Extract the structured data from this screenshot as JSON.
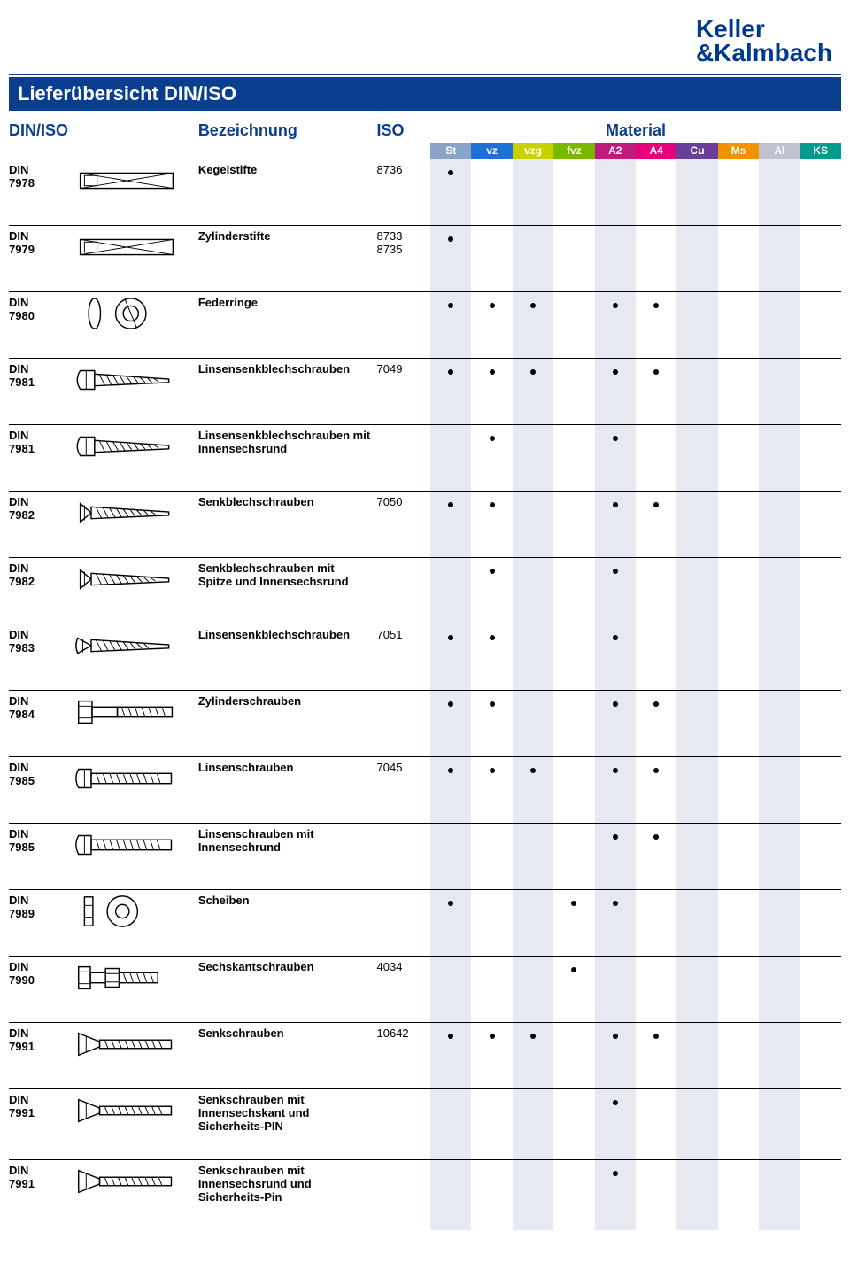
{
  "brand": {
    "line1": "Keller",
    "line2": "&Kalmbach"
  },
  "page_title": "Lieferübersicht DIN/ISO",
  "columns": {
    "din_iso": "DIN/ISO",
    "bezeichnung": "Bezeichnung",
    "iso": "ISO",
    "material": "Material"
  },
  "materials": [
    {
      "key": "St",
      "label": "St",
      "color": "#8aa3c8",
      "shaded": true
    },
    {
      "key": "vz",
      "label": "vz",
      "color": "#1e6fd6",
      "shaded": false
    },
    {
      "key": "vzg",
      "label": "vzg",
      "color": "#c9d200",
      "shaded": true
    },
    {
      "key": "fvz",
      "label": "fvz",
      "color": "#7ab800",
      "shaded": false
    },
    {
      "key": "A2",
      "label": "A2",
      "color": "#c01a7d",
      "shaded": true
    },
    {
      "key": "A4",
      "label": "A4",
      "color": "#e5007d",
      "shaded": false
    },
    {
      "key": "Cu",
      "label": "Cu",
      "color": "#6a3f99",
      "shaded": true
    },
    {
      "key": "Ms",
      "label": "Ms",
      "color": "#f39200",
      "shaded": false
    },
    {
      "key": "Al",
      "label": "Al",
      "color": "#bfc3d1",
      "shaded": true
    },
    {
      "key": "KS",
      "label": "KS",
      "color": "#009a8e",
      "shaded": false
    }
  ],
  "rows": [
    {
      "din": "DIN",
      "num": "7978",
      "bez": "Kegelstifte",
      "iso": "8736",
      "icon": "pin-taper",
      "mats": [
        "St"
      ]
    },
    {
      "din": "DIN",
      "num": "7979",
      "bez": "Zylinderstifte",
      "iso": "8733\n8735",
      "icon": "pin-cyl",
      "mats": [
        "St"
      ]
    },
    {
      "din": "DIN",
      "num": "7980",
      "bez": "Federringe",
      "iso": "",
      "icon": "spring-washer",
      "mats": [
        "St",
        "vz",
        "vzg",
        "A2",
        "A4"
      ]
    },
    {
      "din": "DIN",
      "num": "7981",
      "bez": "Linsensenkblechschrauben",
      "iso": "7049",
      "icon": "screw-pan",
      "mats": [
        "St",
        "vz",
        "vzg",
        "A2",
        "A4"
      ]
    },
    {
      "din": "DIN",
      "num": "7981",
      "bez": "Linsensenkblechschrauben mit Innensechsrund",
      "iso": "",
      "icon": "screw-pan",
      "mats": [
        "vz",
        "A2"
      ]
    },
    {
      "din": "DIN",
      "num": "7982",
      "bez": "Senkblechschrauben",
      "iso": "7050",
      "icon": "screw-csk",
      "mats": [
        "St",
        "vz",
        "A2",
        "A4"
      ]
    },
    {
      "din": "DIN",
      "num": "7982",
      "bez": "Senkblechschrauben mit Spitze und Innensechsrund",
      "iso": "",
      "icon": "screw-csk",
      "mats": [
        "vz",
        "A2"
      ]
    },
    {
      "din": "DIN",
      "num": "7983",
      "bez": "Linsensenkblechschrauben",
      "iso": "7051",
      "icon": "screw-raised-csk",
      "mats": [
        "St",
        "vz",
        "A2"
      ]
    },
    {
      "din": "DIN",
      "num": "7984",
      "bez": "Zylinderschrauben",
      "iso": "",
      "icon": "screw-cheese",
      "mats": [
        "St",
        "vz",
        "A2",
        "A4"
      ]
    },
    {
      "din": "DIN",
      "num": "7985",
      "bez": "Linsenschrauben",
      "iso": "7045",
      "icon": "screw-pan-machine",
      "mats": [
        "St",
        "vz",
        "vzg",
        "A2",
        "A4"
      ]
    },
    {
      "din": "DIN",
      "num": "7985",
      "bez": "Linsenschrauben mit Innensechrund",
      "iso": "",
      "icon": "screw-pan-machine",
      "mats": [
        "A2",
        "A4"
      ]
    },
    {
      "din": "DIN",
      "num": "7989",
      "bez": "Scheiben",
      "iso": "",
      "icon": "washer",
      "mats": [
        "St",
        "fvz",
        "A2"
      ]
    },
    {
      "din": "DIN",
      "num": "7990",
      "bez": "Sechskantschrauben",
      "iso": "4034",
      "icon": "hex-bolt",
      "mats": [
        "fvz"
      ]
    },
    {
      "din": "DIN",
      "num": "7991",
      "bez": "Senkschrauben",
      "iso": "10642",
      "icon": "screw-csk-socket",
      "mats": [
        "St",
        "vz",
        "vzg",
        "A2",
        "A4"
      ]
    },
    {
      "din": "DIN",
      "num": "7991",
      "bez": "Senkschrauben mit Innensechskant und Sicherheits-PIN",
      "iso": "",
      "icon": "screw-csk-socket",
      "mats": [
        "A2"
      ]
    },
    {
      "din": "DIN",
      "num": "7991",
      "bez": "Senkschrauben mit Innensechsrund und Sicherheits-Pin",
      "iso": "",
      "icon": "screw-csk-socket",
      "mats": [
        "A2"
      ]
    }
  ]
}
